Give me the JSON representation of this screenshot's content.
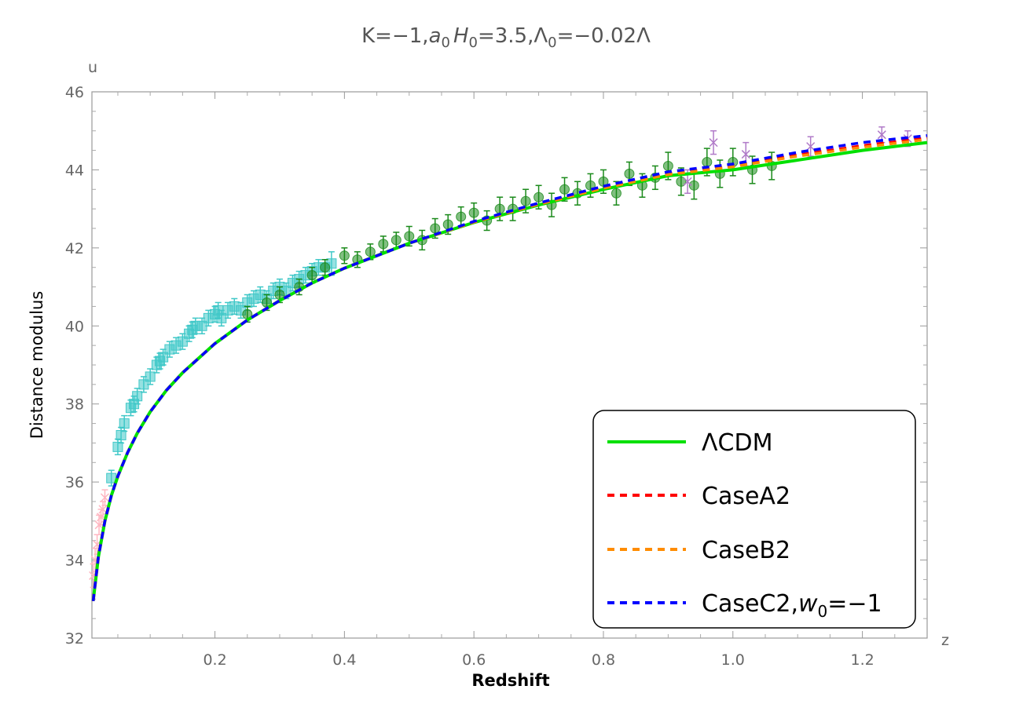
{
  "chart_data": {
    "type": "scatter",
    "title": "K=−1,a₀H₀=3.5,Λ₀=−0.02Λ",
    "title_parts": {
      "p1": "K=−1,",
      "a": "a",
      "a_sub": "0",
      "h": "H",
      "h_sub": "0",
      "p2": "=3.5,Λ",
      "l_sub": "0",
      "p3": "=−0.02Λ"
    },
    "xlabel": "Redshift",
    "ylabel": "Distance modulus",
    "x_axis_letter": "z",
    "y_axis_letter": "u",
    "xlim": [
      0.01,
      1.3
    ],
    "ylim": [
      32,
      46
    ],
    "xticks": [
      0.2,
      0.4,
      0.6,
      0.8,
      1.0,
      1.2
    ],
    "xtick_labels": [
      "0.2",
      "0.4",
      "0.6",
      "0.8",
      "1.0",
      "1.2"
    ],
    "yticks": [
      32,
      34,
      36,
      38,
      40,
      42,
      44,
      46
    ],
    "ytick_labels": [
      "32",
      "34",
      "36",
      "38",
      "40",
      "42",
      "44",
      "46"
    ],
    "legend_position": "bottom-right",
    "curve_z": [
      0.012,
      0.02,
      0.03,
      0.04,
      0.05,
      0.065,
      0.08,
      0.1,
      0.125,
      0.15,
      0.2,
      0.25,
      0.3,
      0.35,
      0.4,
      0.5,
      0.6,
      0.7,
      0.8,
      0.9,
      1.0,
      1.1,
      1.2,
      1.3
    ],
    "series": [
      {
        "name": "ΛCDM",
        "style": "solid",
        "color": "#00e000",
        "values": [
          32.95,
          34.08,
          35.0,
          35.65,
          36.15,
          36.75,
          37.25,
          37.8,
          38.35,
          38.8,
          39.55,
          40.15,
          40.65,
          41.1,
          41.48,
          42.12,
          42.65,
          43.1,
          43.5,
          43.85,
          44.0,
          44.25,
          44.5,
          44.7
        ]
      },
      {
        "name": "CaseA2",
        "style": "dashed",
        "color": "#ff0000",
        "values": [
          32.95,
          34.08,
          35.0,
          35.65,
          36.15,
          36.75,
          37.25,
          37.8,
          38.35,
          38.8,
          39.55,
          40.15,
          40.65,
          41.1,
          41.48,
          42.12,
          42.66,
          43.12,
          43.54,
          43.9,
          44.1,
          44.38,
          44.62,
          44.82
        ]
      },
      {
        "name": "CaseB2",
        "style": "dashed",
        "color": "#ff8c00",
        "values": [
          32.95,
          34.08,
          35.0,
          35.65,
          36.15,
          36.75,
          37.25,
          37.8,
          38.35,
          38.8,
          39.55,
          40.15,
          40.65,
          41.1,
          41.48,
          42.12,
          42.66,
          43.12,
          43.53,
          43.88,
          44.08,
          44.35,
          44.58,
          44.78
        ]
      },
      {
        "name": "CaseC2,w₀=−1",
        "name_main": "CaseC2,",
        "name_w": "w",
        "name_sub": "0",
        "name_tail": "=−1",
        "style": "dashed",
        "color": "#0000ff",
        "values": [
          32.95,
          34.08,
          35.0,
          35.65,
          36.15,
          36.75,
          37.25,
          37.8,
          38.35,
          38.8,
          39.55,
          40.15,
          40.65,
          41.1,
          41.48,
          42.12,
          42.68,
          43.15,
          43.58,
          43.95,
          44.15,
          44.45,
          44.7,
          44.88
        ]
      }
    ],
    "data_sets": [
      {
        "name": "low-z",
        "marker": "cross",
        "color": "#ffb6c1",
        "x": [
          0.012,
          0.015,
          0.018,
          0.021,
          0.024,
          0.027,
          0.03
        ],
        "y": [
          33.6,
          34.0,
          34.4,
          34.9,
          35.1,
          35.3,
          35.6
        ],
        "err": [
          0.3,
          0.3,
          0.25,
          0.25,
          0.2,
          0.2,
          0.2
        ]
      },
      {
        "name": "cyan-squares",
        "marker": "square",
        "color": "#40c8c8",
        "x": [
          0.04,
          0.05,
          0.055,
          0.06,
          0.07,
          0.075,
          0.08,
          0.09,
          0.1,
          0.11,
          0.115,
          0.12,
          0.13,
          0.14,
          0.15,
          0.16,
          0.165,
          0.17,
          0.18,
          0.19,
          0.2,
          0.205,
          0.21,
          0.22,
          0.23,
          0.24,
          0.25,
          0.26,
          0.27,
          0.28,
          0.29,
          0.3,
          0.31,
          0.32,
          0.33,
          0.34,
          0.35,
          0.36,
          0.37,
          0.38
        ],
        "y": [
          36.1,
          36.9,
          37.2,
          37.5,
          37.9,
          38.0,
          38.2,
          38.5,
          38.7,
          39.0,
          39.1,
          39.2,
          39.4,
          39.5,
          39.6,
          39.8,
          39.9,
          40.0,
          40.0,
          40.2,
          40.3,
          40.4,
          40.2,
          40.4,
          40.5,
          40.4,
          40.6,
          40.7,
          40.8,
          40.7,
          40.9,
          41.0,
          40.9,
          41.1,
          41.2,
          41.3,
          41.4,
          41.5,
          41.5,
          41.6
        ],
        "err": [
          0.2,
          0.2,
          0.2,
          0.2,
          0.2,
          0.2,
          0.2,
          0.2,
          0.2,
          0.2,
          0.2,
          0.2,
          0.2,
          0.2,
          0.2,
          0.2,
          0.2,
          0.2,
          0.2,
          0.2,
          0.2,
          0.2,
          0.2,
          0.2,
          0.2,
          0.2,
          0.2,
          0.2,
          0.2,
          0.2,
          0.2,
          0.2,
          0.2,
          0.2,
          0.2,
          0.2,
          0.2,
          0.2,
          0.2,
          0.3
        ]
      },
      {
        "name": "green-circles",
        "marker": "circle",
        "color": "#1a8a1a",
        "x": [
          0.25,
          0.28,
          0.3,
          0.33,
          0.35,
          0.37,
          0.4,
          0.42,
          0.44,
          0.46,
          0.48,
          0.5,
          0.52,
          0.54,
          0.56,
          0.58,
          0.6,
          0.62,
          0.64,
          0.66,
          0.68,
          0.7,
          0.72,
          0.74,
          0.76,
          0.78,
          0.8,
          0.82,
          0.84,
          0.86,
          0.88,
          0.9,
          0.92,
          0.94,
          0.96,
          0.98,
          1.0,
          1.03,
          1.06
        ],
        "y": [
          40.3,
          40.6,
          40.8,
          41.0,
          41.3,
          41.5,
          41.8,
          41.7,
          41.9,
          42.1,
          42.2,
          42.3,
          42.2,
          42.5,
          42.6,
          42.8,
          42.9,
          42.7,
          43.0,
          43.0,
          43.2,
          43.3,
          43.1,
          43.5,
          43.4,
          43.6,
          43.7,
          43.4,
          43.9,
          43.6,
          43.8,
          44.1,
          43.7,
          43.6,
          44.2,
          43.9,
          44.2,
          44.0,
          44.1
        ],
        "err": [
          0.2,
          0.2,
          0.2,
          0.2,
          0.2,
          0.2,
          0.2,
          0.2,
          0.2,
          0.2,
          0.2,
          0.25,
          0.25,
          0.25,
          0.25,
          0.25,
          0.25,
          0.25,
          0.3,
          0.3,
          0.3,
          0.3,
          0.3,
          0.3,
          0.3,
          0.3,
          0.3,
          0.3,
          0.3,
          0.3,
          0.3,
          0.35,
          0.35,
          0.35,
          0.35,
          0.35,
          0.35,
          0.35,
          0.35
        ]
      },
      {
        "name": "high-z",
        "marker": "cross",
        "color": "#b07ac8",
        "x": [
          0.93,
          0.97,
          1.02,
          1.12,
          1.23,
          1.27
        ],
        "y": [
          43.7,
          44.7,
          44.4,
          44.6,
          44.9,
          44.8
        ],
        "err": [
          0.3,
          0.3,
          0.3,
          0.25,
          0.2,
          0.2
        ]
      }
    ]
  }
}
